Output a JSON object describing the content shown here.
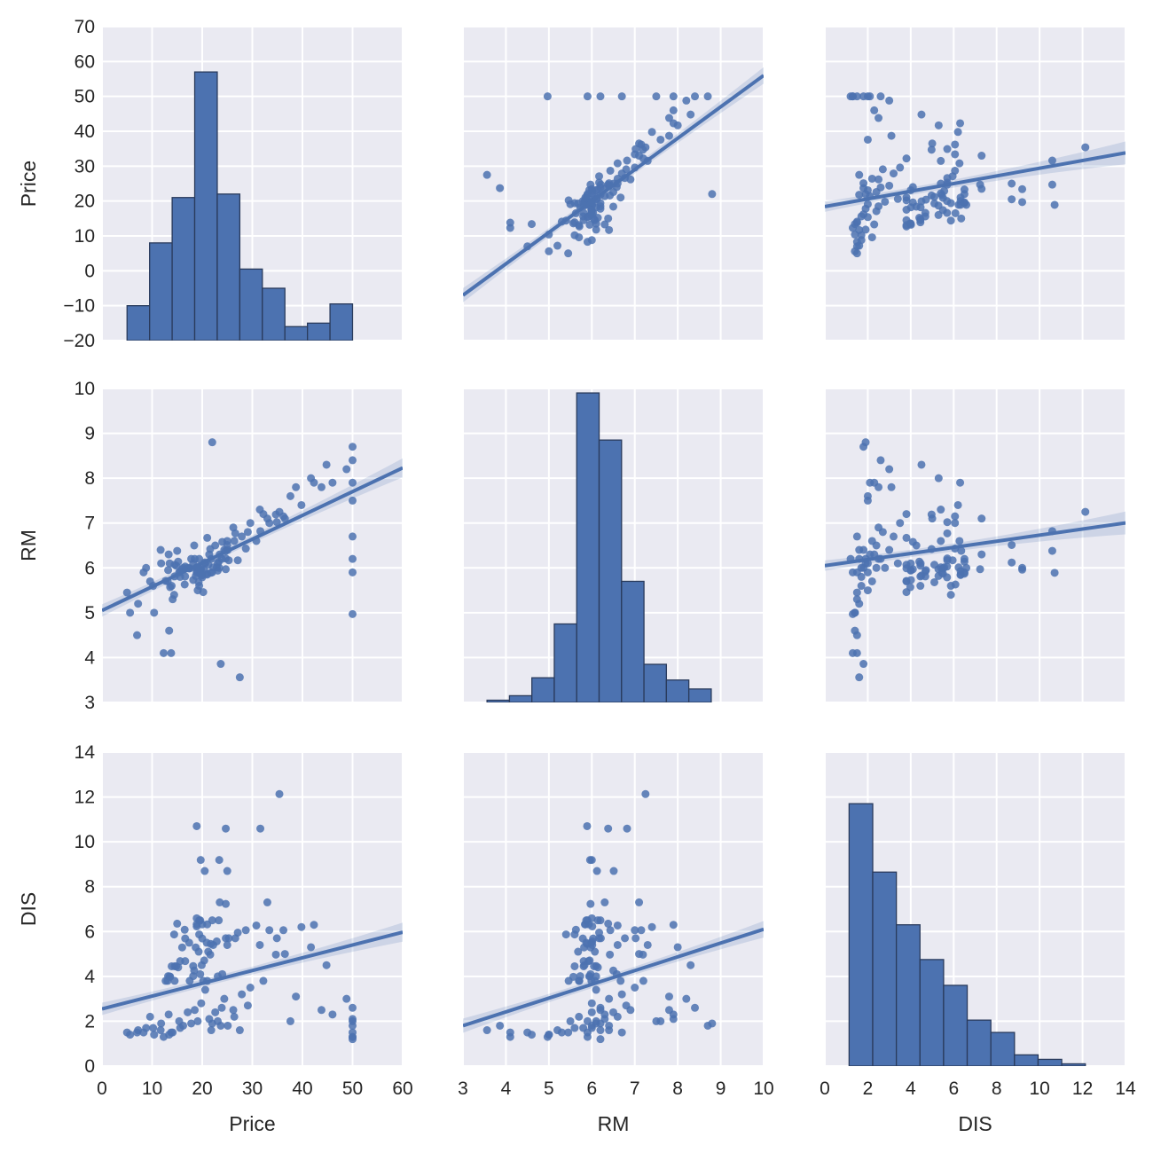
{
  "chart_data": {
    "type": "pairplot",
    "variables": [
      "Price",
      "RM",
      "DIS"
    ],
    "ranges": {
      "Price": [
        -20,
        70
      ],
      "RM": [
        3,
        10
      ],
      "DIS": [
        0,
        14
      ]
    },
    "xranges": {
      "Price": [
        0,
        60
      ],
      "RM": [
        3,
        10
      ],
      "DIS": [
        0,
        14
      ]
    },
    "ticks": {
      "Price_y": [
        "70",
        "60",
        "50",
        "40",
        "30",
        "20",
        "10",
        "0",
        "−10",
        "−20"
      ],
      "Price_x": [
        "0",
        "10",
        "20",
        "30",
        "40",
        "50",
        "60"
      ],
      "RM": [
        "3",
        "4",
        "5",
        "6",
        "7",
        "8",
        "9",
        "10"
      ],
      "DIS": [
        "0",
        "2",
        "4",
        "6",
        "8",
        "10",
        "12",
        "14"
      ]
    },
    "grid": true,
    "colors": {
      "background": "#eaeaf2",
      "grid": "#ffffff",
      "marker": "#4c72b0",
      "edge": "#2a3b5c",
      "band": "#4c72b0"
    },
    "histograms": {
      "Price": {
        "bin_start": 5,
        "bin_width": 4.5,
        "bar_tops": [
          -10,
          8,
          21,
          57,
          22,
          0.5,
          -5,
          -16,
          -15,
          -9.5
        ],
        "baseline": -20
      },
      "RM": {
        "bin_start": 3.56,
        "bin_width": 0.522,
        "bar_tops": [
          3.05,
          3.15,
          3.55,
          4.75,
          9.9,
          8.85,
          5.7,
          3.85,
          3.5,
          3.3
        ],
        "baseline": 3
      },
      "DIS": {
        "bin_start": 1.13,
        "bin_width": 1.1,
        "bar_tops": [
          11.7,
          8.65,
          6.3,
          4.75,
          3.6,
          2.05,
          1.5,
          0.5,
          0.3,
          0.1
        ],
        "baseline": 0
      }
    },
    "regressions": [
      {
        "x": "RM",
        "y": "Price",
        "slope": 9.0,
        "intercept": -34.0
      },
      {
        "x": "DIS",
        "y": "Price",
        "slope": 1.1,
        "intercept": 18.4
      },
      {
        "x": "Price",
        "y": "RM",
        "slope": 0.053,
        "intercept": 5.05
      },
      {
        "x": "DIS",
        "y": "RM",
        "slope": 0.068,
        "intercept": 6.05
      },
      {
        "x": "Price",
        "y": "DIS",
        "slope": 0.057,
        "intercept": 2.55
      },
      {
        "x": "RM",
        "y": "DIS",
        "slope": 0.614,
        "intercept": -0.04
      }
    ],
    "points_columns": [
      "Price",
      "RM",
      "DIS"
    ],
    "points": [
      [
        24,
        6.58,
        4.1
      ],
      [
        21.6,
        6.42,
        4.97
      ],
      [
        34.7,
        7.19,
        4.97
      ],
      [
        33.4,
        7.0,
        6.06
      ],
      [
        36.2,
        7.15,
        6.06
      ],
      [
        28.7,
        6.43,
        6.06
      ],
      [
        22.9,
        6.01,
        5.56
      ],
      [
        27.1,
        6.17,
        5.95
      ],
      [
        16.5,
        5.63,
        6.08
      ],
      [
        18.9,
        6.0,
        6.59
      ],
      [
        15,
        6.38,
        6.35
      ],
      [
        18.9,
        6.01,
        6.23
      ],
      [
        21.7,
        5.89,
        5.45
      ],
      [
        20.4,
        5.95,
        4.71
      ],
      [
        18.2,
        6.1,
        4.46
      ],
      [
        19.9,
        5.83,
        4.5
      ],
      [
        23.1,
        5.94,
        4.0
      ],
      [
        17.5,
        5.99,
        3.8
      ],
      [
        20.2,
        5.46,
        3.8
      ],
      [
        18.2,
        5.73,
        4.01
      ],
      [
        13.6,
        5.57,
        3.98
      ],
      [
        19.6,
        5.97,
        4.1
      ],
      [
        15.2,
        6.14,
        4.4
      ],
      [
        14.5,
        5.81,
        4.45
      ],
      [
        15.6,
        5.92,
        4.68
      ],
      [
        13.9,
        5.6,
        4.45
      ],
      [
        16.6,
        5.81,
        4.68
      ],
      [
        14.8,
        6.05,
        4.45
      ],
      [
        18.4,
        6.5,
        4.26
      ],
      [
        21,
        6.67,
        3.8
      ],
      [
        12.7,
        5.71,
        3.8
      ],
      [
        14.5,
        6.07,
        3.8
      ],
      [
        13.2,
        5.95,
        4.01
      ],
      [
        13.1,
        5.7,
        3.8
      ],
      [
        13.5,
        6.1,
        4.0
      ],
      [
        18.9,
        5.93,
        6.32
      ],
      [
        20,
        5.84,
        6.32
      ],
      [
        21,
        5.85,
        6.32
      ],
      [
        24.7,
        5.97,
        7.23
      ],
      [
        30.8,
        6.6,
        6.27
      ],
      [
        34.9,
        7.02,
        5.7
      ],
      [
        26.6,
        6.77,
        5.7
      ],
      [
        25.3,
        6.17,
        5.7
      ],
      [
        24.7,
        6.21,
        5.7
      ],
      [
        21.2,
        6.07,
        5.1
      ],
      [
        19.3,
        5.68,
        5.1
      ],
      [
        20,
        5.79,
        5.69
      ],
      [
        16.6,
        6.03,
        5.69
      ],
      [
        14.4,
        5.4,
        5.87
      ],
      [
        19.4,
        5.6,
        5.87
      ],
      [
        19.7,
        5.96,
        9.19
      ],
      [
        20.5,
        6.12,
        8.7
      ],
      [
        25,
        6.51,
        8.7
      ],
      [
        23.4,
        6.0,
        9.19
      ],
      [
        18.9,
        5.89,
        10.7
      ],
      [
        35.4,
        7.25,
        12.13
      ],
      [
        24.7,
        6.38,
        10.59
      ],
      [
        31.6,
        6.82,
        10.59
      ],
      [
        23.3,
        6.14,
        6.5
      ],
      [
        19.6,
        5.87,
        6.5
      ],
      [
        18.7,
        5.82,
        5.29
      ],
      [
        16,
        5.97,
        5.29
      ],
      [
        22.2,
        6.01,
        5.4
      ],
      [
        25,
        6.6,
        5.4
      ],
      [
        33,
        7.1,
        7.3
      ],
      [
        23.5,
        6.3,
        7.3
      ],
      [
        19.4,
        6.2,
        6.5
      ],
      [
        22,
        5.9,
        6.5
      ],
      [
        17.4,
        5.99,
        5.5
      ],
      [
        20.9,
        5.87,
        5.5
      ],
      [
        50,
        8.7,
        1.8
      ],
      [
        50,
        7.9,
        2.1
      ],
      [
        50,
        6.2,
        1.2
      ],
      [
        50,
        5.9,
        1.3
      ],
      [
        50,
        4.97,
        1.3
      ],
      [
        50,
        6.7,
        1.5
      ],
      [
        50,
        7.5,
        2.0
      ],
      [
        50,
        8.4,
        2.6
      ],
      [
        48.8,
        8.2,
        3.0
      ],
      [
        46,
        7.9,
        2.3
      ],
      [
        43.8,
        7.8,
        2.5
      ],
      [
        44.8,
        8.3,
        4.5
      ],
      [
        41.7,
        8.0,
        5.3
      ],
      [
        42.3,
        7.9,
        6.3
      ],
      [
        37.6,
        7.6,
        2.0
      ],
      [
        38.7,
        7.8,
        3.1
      ],
      [
        39.8,
        7.4,
        6.2
      ],
      [
        36.5,
        7.1,
        5.0
      ],
      [
        31.5,
        7.3,
        5.4
      ],
      [
        29.6,
        7.0,
        3.5
      ],
      [
        5,
        5.45,
        1.5
      ],
      [
        5.6,
        5.0,
        1.4
      ],
      [
        7,
        4.5,
        1.5
      ],
      [
        7.2,
        5.2,
        1.6
      ],
      [
        8.3,
        5.9,
        1.5
      ],
      [
        8.8,
        6.0,
        1.7
      ],
      [
        10.2,
        5.6,
        1.7
      ],
      [
        10.4,
        5.0,
        1.4
      ],
      [
        11.7,
        6.4,
        1.6
      ],
      [
        12.3,
        4.1,
        1.3
      ],
      [
        13.8,
        4.1,
        1.5
      ],
      [
        22,
        8.8,
        1.9
      ],
      [
        23.7,
        3.86,
        1.8
      ],
      [
        27.5,
        3.56,
        1.6
      ],
      [
        13.4,
        4.6,
        1.4
      ],
      [
        14.1,
        5.3,
        1.5
      ],
      [
        15.6,
        5.8,
        1.7
      ],
      [
        17.8,
        6.2,
        1.9
      ],
      [
        19.1,
        5.5,
        2.0
      ],
      [
        16.2,
        6.0,
        1.8
      ],
      [
        21.4,
        6.3,
        2.1
      ],
      [
        22.6,
        6.5,
        2.4
      ],
      [
        23.9,
        6.2,
        2.6
      ],
      [
        24.4,
        6.4,
        3.0
      ],
      [
        26.4,
        6.6,
        2.2
      ],
      [
        27.9,
        6.7,
        3.2
      ],
      [
        29.1,
        6.8,
        2.7
      ],
      [
        20.6,
        6.1,
        3.4
      ],
      [
        18.5,
        6.2,
        2.5
      ],
      [
        19.8,
        6.0,
        2.8
      ],
      [
        11.8,
        6.1,
        1.9
      ],
      [
        9.6,
        5.7,
        2.2
      ],
      [
        13.3,
        6.3,
        2.3
      ],
      [
        15.4,
        5.9,
        2.0
      ],
      [
        17.1,
        6.0,
        2.4
      ],
      [
        21.8,
        6.2,
        1.6
      ],
      [
        23.1,
        6.1,
        2.0
      ],
      [
        25.1,
        6.4,
        1.8
      ],
      [
        26.2,
        6.9,
        2.5
      ],
      [
        32.2,
        7.2,
        3.8
      ]
    ]
  }
}
